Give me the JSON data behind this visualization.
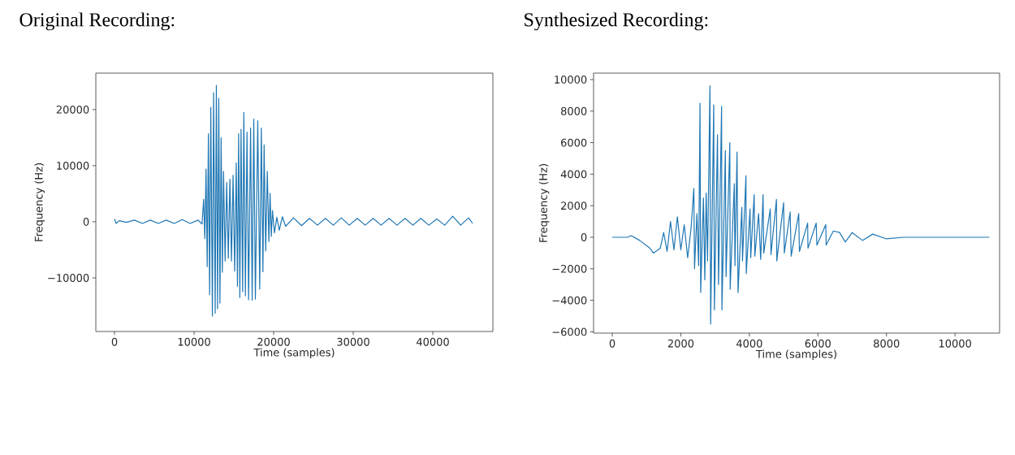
{
  "chart_data": [
    {
      "type": "line",
      "title": "Original Recording:",
      "xlabel": "Time (samples)",
      "ylabel": "Frequency (Hz)",
      "xlim": [
        -2350,
        47550
      ],
      "ylim": [
        -19560,
        26500
      ],
      "xticks": [
        0,
        10000,
        20000,
        30000,
        40000
      ],
      "yticks": [
        {
          "value": -10000,
          "label": "−10000"
        },
        0,
        10000,
        20000
      ],
      "series": [
        {
          "color": "#1f77b4",
          "x": [
            0,
            200,
            600,
            1500,
            2500,
            3500,
            4500,
            5500,
            6500,
            7500,
            8500,
            9500,
            10500,
            11000,
            11200,
            11350,
            11500,
            11650,
            11800,
            11950,
            12100,
            12300,
            12450,
            12650,
            12800,
            12950,
            13100,
            13250,
            13400,
            13550,
            13700,
            13900,
            14100,
            14300,
            14500,
            14700,
            14900,
            15100,
            15300,
            15450,
            15600,
            15750,
            15900,
            16100,
            16250,
            16450,
            16650,
            16850,
            17100,
            17300,
            17500,
            17700,
            18000,
            18250,
            18450,
            18650,
            18800,
            19000,
            19200,
            19400,
            19550,
            19700,
            19850,
            20100,
            20400,
            20700,
            21100,
            21500,
            22500,
            23500,
            24500,
            25500,
            26500,
            27500,
            28500,
            29500,
            30500,
            31500,
            32500,
            33500,
            34500,
            35500,
            36500,
            37500,
            38500,
            39500,
            40500,
            41500,
            42500,
            43500,
            44500,
            45000
          ],
          "values": [
            500,
            -300,
            200,
            -100,
            300,
            -300,
            300,
            -300,
            300,
            -300,
            400,
            -300,
            300,
            -400,
            4000,
            -3000,
            9400,
            -8000,
            15700,
            -13000,
            20400,
            -16800,
            23000,
            -16300,
            24300,
            -15500,
            22000,
            -14500,
            15000,
            -9000,
            9000,
            -7000,
            7000,
            -6500,
            7600,
            -7000,
            8300,
            -8800,
            10500,
            -11500,
            15700,
            -13500,
            16500,
            -12500,
            19500,
            -13200,
            16000,
            -13900,
            16700,
            -14000,
            18300,
            -13800,
            18000,
            -12000,
            16700,
            -8900,
            13700,
            -5200,
            9000,
            -3500,
            5100,
            -2600,
            2000,
            -2000,
            800,
            -1500,
            900,
            -800,
            700,
            -700,
            600,
            -600,
            600,
            -600,
            700,
            -600,
            600,
            -600,
            600,
            -600,
            600,
            -600,
            600,
            -600,
            600,
            -600,
            500,
            -600,
            1000,
            -600,
            700,
            -300
          ]
        }
      ]
    },
    {
      "type": "line",
      "title": "Synthesized Recording:",
      "xlabel": "Time (samples)",
      "ylabel": "Frequency (Hz)",
      "xlim": [
        -545,
        11300
      ],
      "ylim": [
        -6080,
        10410
      ],
      "xticks": [
        0,
        2000,
        4000,
        6000,
        8000,
        10000
      ],
      "yticks": [
        {
          "value": -6000,
          "label": "−6000"
        },
        {
          "value": -4000,
          "label": "−4000"
        },
        {
          "value": -2000,
          "label": "−2000"
        },
        0,
        2000,
        4000,
        6000,
        8000,
        10000
      ],
      "series": [
        {
          "color": "#1f77b4",
          "x": [
            0,
            450,
            550,
            800,
            1100,
            1200,
            1400,
            1500,
            1600,
            1700,
            1800,
            1900,
            2000,
            2100,
            2200,
            2300,
            2380,
            2400,
            2470,
            2520,
            2560,
            2580,
            2660,
            2700,
            2740,
            2780,
            2850,
            2870,
            2960,
            2980,
            3070,
            3100,
            3190,
            3200,
            3300,
            3320,
            3430,
            3440,
            3560,
            3580,
            3640,
            3670,
            3780,
            3800,
            3900,
            3910,
            4020,
            4040,
            4140,
            4160,
            4270,
            4330,
            4400,
            4420,
            4610,
            4630,
            4790,
            4800,
            5000,
            5020,
            5190,
            5220,
            5440,
            5460,
            5700,
            5710,
            5950,
            5970,
            6230,
            6240,
            6450,
            6630,
            6800,
            7000,
            7300,
            7600,
            8000,
            8500,
            9000,
            11000
          ],
          "values": [
            0,
            0,
            100,
            -200,
            -700,
            -1000,
            -700,
            300,
            -900,
            1000,
            -800,
            1300,
            -800,
            800,
            -1300,
            600,
            3100,
            -2000,
            1500,
            -1800,
            8500,
            -3500,
            2500,
            -2700,
            2800,
            -1500,
            9600,
            -5500,
            8400,
            -4600,
            6500,
            -3000,
            8300,
            -4600,
            5500,
            -2500,
            6000,
            -3300,
            3400,
            -1800,
            5400,
            -3500,
            1900,
            -1500,
            3900,
            -2300,
            1800,
            -1300,
            2700,
            -1200,
            1500,
            -1400,
            2700,
            -1000,
            1800,
            -1100,
            2400,
            -1500,
            2200,
            -1000,
            1600,
            -1200,
            1500,
            -900,
            900,
            -700,
            900,
            -500,
            800,
            -500,
            400,
            300,
            -300,
            300,
            -200,
            200,
            -100,
            0,
            0,
            0
          ]
        }
      ]
    }
  ]
}
